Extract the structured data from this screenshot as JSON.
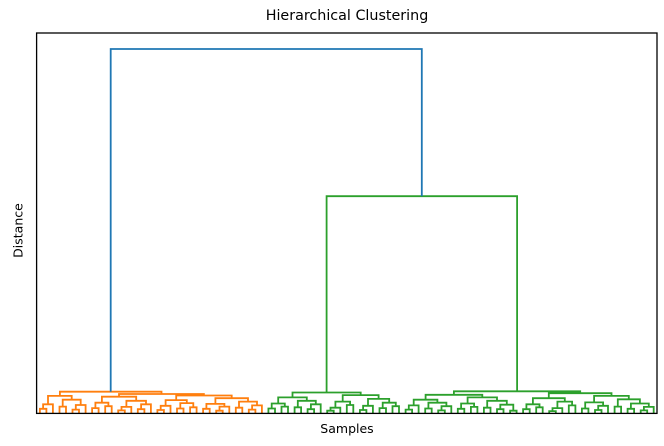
{
  "chart": {
    "title": "Hierarchical Clustering",
    "xlabel": "Samples",
    "ylabel": "Distance"
  },
  "chart_data": {
    "type": "dendrogram",
    "title": "Hierarchical Clustering",
    "xlabel": "Samples",
    "ylabel": "Distance",
    "x_tick_labels": [],
    "y_tick_labels": [],
    "grid": false,
    "background_color": "#ffffff",
    "frame_color": "#000000",
    "ymax": 1.0,
    "root_merge_height": 0.958,
    "link_color_above_threshold": "#1f77b4",
    "cluster_colors": [
      "#ff7f0e",
      "#2ca02c"
    ],
    "tree": [
      0.958,
      [
        0.057,
        [
          0.046,
          [
            0.024,
            [
              0.012,
              0,
              0
            ],
            0
          ],
          [
            0.036,
            [
              0.018,
              0,
              0
            ],
            [
              0.022,
              [
                0.01,
                0,
                0
              ],
              0
            ]
          ]
        ],
        [
          0.051,
          [
            0.044,
            [
              0.028,
              [
                0.014,
                0,
                0
              ],
              [
                0.019,
                0,
                0
              ]
            ],
            [
              0.033,
              [
                0.017,
                [
                  0.008,
                  0,
                  0
                ],
                0
              ],
              [
                0.024,
                [
                  0.011,
                  0,
                  0
                ],
                0
              ]
            ]
          ],
          [
            0.047,
            [
              0.035,
              [
                0.02,
                [
                  0.009,
                  0,
                  0
                ],
                0
              ],
              [
                0.027,
                [
                  0.013,
                  0,
                  0
                ],
                [
                  0.016,
                  0,
                  0
                ]
              ]
            ],
            [
              0.04,
              [
                0.025,
                [
                  0.012,
                  0,
                  0
                ],
                [
                  0.018,
                  [
                    0.007,
                    0,
                    0
                  ],
                  0
                ]
              ],
              [
                0.031,
                [
                  0.015,
                  0,
                  0
                ],
                [
                  0.021,
                  [
                    0.01,
                    0,
                    0
                  ],
                  0
                ]
              ]
            ]
          ]
        ]
      ],
      [
        0.571,
        [
          0.055,
          [
            0.042,
            [
              0.026,
              [
                0.013,
                0,
                0
              ],
              [
                0.018,
                0,
                0
              ]
            ],
            [
              0.033,
              [
                0.016,
                0,
                0
              ],
              [
                0.024,
                [
                  0.011,
                  0,
                  0
                ],
                0
              ]
            ]
          ],
          [
            0.048,
            [
              0.031,
              [
                0.015,
                [
                  0.007,
                  0,
                  0
                ],
                0
              ],
              [
                0.022,
                0,
                0
              ]
            ],
            [
              0.038,
              [
                0.02,
                [
                  0.009,
                  0,
                  0
                ],
                0
              ],
              [
                0.028,
                [
                  0.014,
                  0,
                  0
                ],
                [
                  0.019,
                  0,
                  0
                ]
              ]
            ]
          ]
        ],
        [
          0.058,
          [
            0.049,
            [
              0.036,
              [
                0.021,
                [
                  0.01,
                  0,
                  0
                ],
                0
              ],
              [
                0.028,
                [
                  0.013,
                  0,
                  0
                ],
                [
                  0.019,
                  [
                    0.008,
                    0,
                    0
                  ],
                  0
                ]
              ]
            ],
            [
              0.042,
              [
                0.026,
                [
                  0.012,
                  0,
                  0
                ],
                [
                  0.017,
                  0,
                  0
                ]
              ],
              [
                0.033,
                [
                  0.015,
                  0,
                  0
                ],
                [
                  0.023,
                  [
                    0.011,
                    0,
                    0
                  ],
                  [
                    0.007,
                    0,
                    0
                  ]
                ]
              ]
            ]
          ],
          [
            0.053,
            [
              0.04,
              [
                0.024,
                [
                  0.011,
                  0,
                  0
                ],
                [
                  0.016,
                  0,
                  0
                ]
              ],
              [
                0.031,
                [
                  0.014,
                  [
                    0.006,
                    0,
                    0
                  ],
                  0
                ],
                [
                  0.021,
                  0,
                  0
                ]
              ]
            ],
            [
              0.046,
              [
                0.029,
                [
                  0.013,
                  0,
                  0
                ],
                [
                  0.02,
                  [
                    0.009,
                    0,
                    0
                  ],
                  0
                ]
              ],
              [
                0.037,
                [
                  0.018,
                  0,
                  0
                ],
                [
                  0.026,
                  [
                    0.012,
                    0,
                    0
                  ],
                  [
                    0.017,
                    [
                      0.008,
                      0,
                      0
                    ],
                    0
                  ]
                ]
              ]
            ]
          ]
        ]
      ]
    ]
  }
}
